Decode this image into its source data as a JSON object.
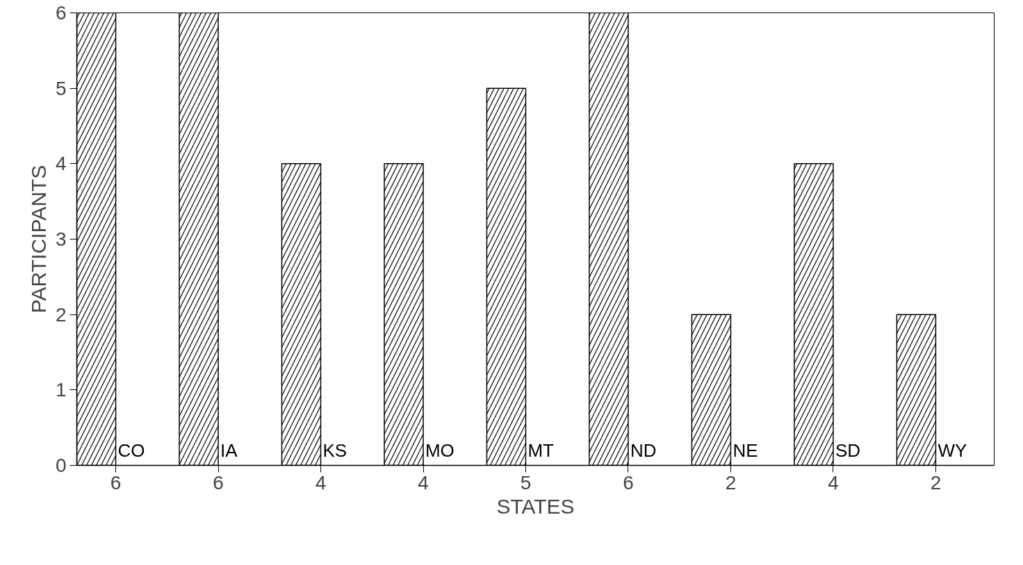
{
  "chart_data": {
    "type": "bar",
    "xlabel": "STATES",
    "ylabel": "PARTICIPANTS",
    "categories": [
      "CO",
      "IA",
      "KS",
      "MO",
      "MT",
      "ND",
      "NE",
      "SD",
      "WY"
    ],
    "values": [
      6,
      6,
      4,
      4,
      5,
      6,
      2,
      4,
      2
    ],
    "color": "#000000",
    "ylim": [
      0,
      6
    ],
    "yticks": [
      0,
      1,
      2,
      3,
      4,
      5,
      6
    ],
    "grid": false,
    "data_labels": true
  }
}
